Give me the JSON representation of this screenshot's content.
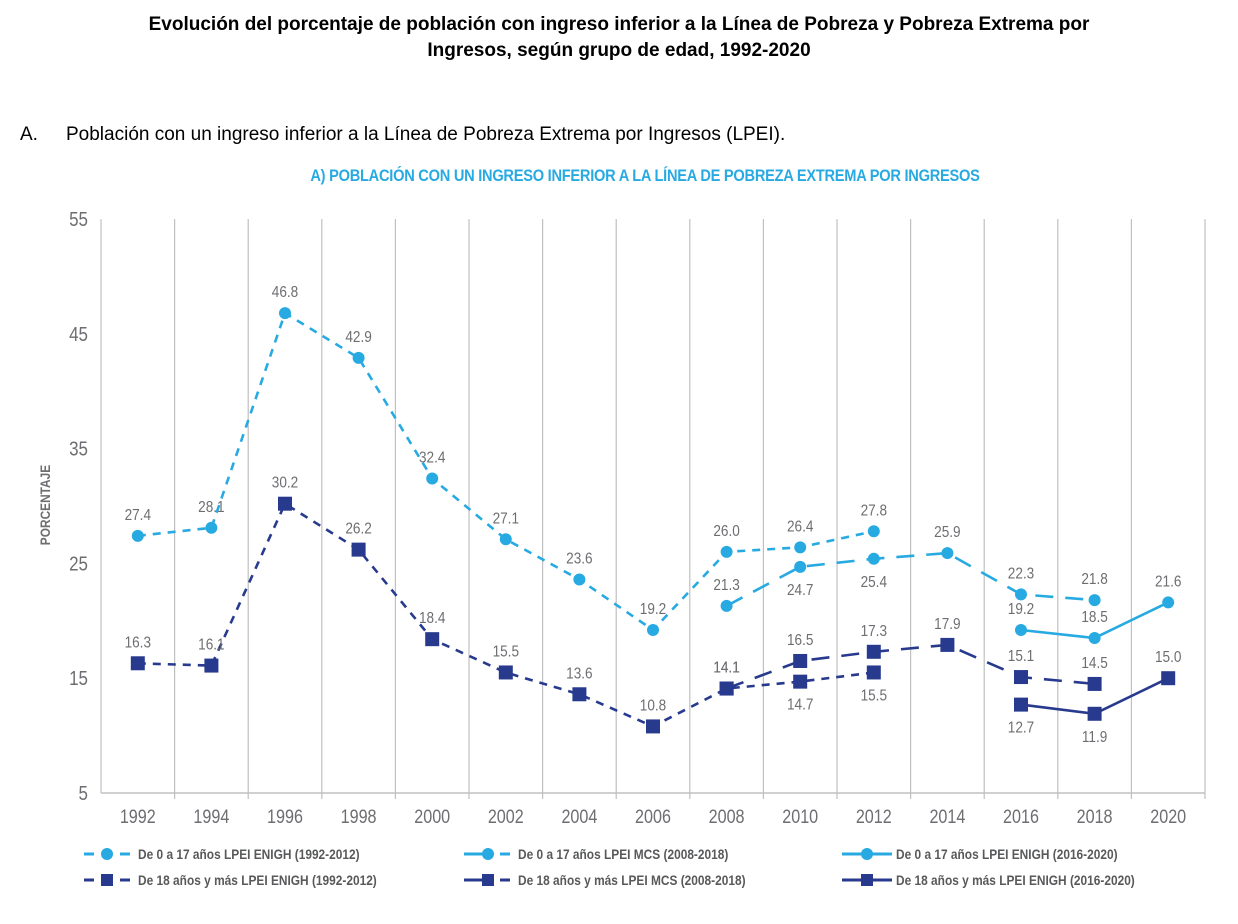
{
  "page": {
    "title": "Evolución del porcentaje de población con ingreso inferior a la Línea de Pobreza y Pobreza Extrema por Ingresos, según grupo de edad, 1992-2020",
    "title_line1": "Evolución del porcentaje de población con ingreso inferior a la Línea de Pobreza y Pobreza Extrema por",
    "title_line2": "Ingresos, según grupo de edad, 1992-2020",
    "section_letter": "A.",
    "section_text": "Población con un ingreso inferior a la Línea de Pobreza Extrema por Ingresos (LPEI)."
  },
  "colors": {
    "light_blue": "#27aae1",
    "navy": "#283a8e",
    "grid": "#c0c0c0",
    "tick_text": "#6d6e71"
  },
  "chart_data": {
    "type": "line",
    "title": "A) POBLACIÓN CON UN INGRESO INFERIOR A LA LÍNEA DE POBREZA EXTREMA POR INGRESOS",
    "xlabel": "",
    "ylabel": "PORCENTAJE",
    "ylim": [
      5,
      55
    ],
    "yticks": [
      5,
      15,
      25,
      35,
      45,
      55
    ],
    "grid": "vertical",
    "legend_position": "bottom",
    "categories": [
      "1992",
      "1994",
      "1996",
      "1998",
      "2000",
      "2002",
      "2004",
      "2006",
      "2008",
      "2010",
      "2012",
      "2014",
      "2016",
      "2018",
      "2020"
    ],
    "series": [
      {
        "name": "De 0 a 17 años LPEI ENIGH (1992-2012)",
        "color": "#27aae1",
        "marker": "circle",
        "line": "short-dash",
        "values": [
          27.4,
          28.1,
          46.8,
          42.9,
          32.4,
          27.1,
          23.6,
          19.2,
          26.0,
          26.4,
          27.8,
          null,
          null,
          null,
          null
        ],
        "label_pos": [
          "above",
          "above",
          "above",
          "above",
          "above",
          "above",
          "above",
          "above",
          "above",
          "above",
          "above",
          null,
          null,
          null,
          null
        ]
      },
      {
        "name": "De 0 a 17 años LPEI MCS (2008-2018)",
        "color": "#27aae1",
        "marker": "circle",
        "line": "long-dash",
        "values": [
          null,
          null,
          null,
          null,
          null,
          null,
          null,
          null,
          21.3,
          24.7,
          25.4,
          25.9,
          22.3,
          21.8,
          null
        ],
        "label_pos": [
          null,
          null,
          null,
          null,
          null,
          null,
          null,
          null,
          "above",
          "below",
          "below",
          "above",
          "above",
          "above",
          null
        ]
      },
      {
        "name": "De 0 a 17 años LPEI ENIGH (2016-2020)",
        "color": "#27aae1",
        "marker": "circle",
        "line": "solid",
        "values": [
          null,
          null,
          null,
          null,
          null,
          null,
          null,
          null,
          null,
          null,
          null,
          null,
          19.2,
          18.5,
          21.6
        ],
        "label_pos": [
          null,
          null,
          null,
          null,
          null,
          null,
          null,
          null,
          null,
          null,
          null,
          null,
          "above",
          "above",
          "above"
        ]
      },
      {
        "name": "De 18 años y más LPEI ENIGH (1992-2012)",
        "color": "#283a8e",
        "marker": "square",
        "line": "short-dash",
        "values": [
          16.3,
          16.1,
          30.2,
          26.2,
          18.4,
          15.5,
          13.6,
          10.8,
          14.1,
          14.7,
          15.5,
          null,
          null,
          null,
          null
        ],
        "label_pos": [
          "above",
          "above",
          "above",
          "above",
          "above",
          "above",
          "above",
          "above",
          "above",
          "below",
          "below",
          null,
          null,
          null,
          null
        ]
      },
      {
        "name": "De 18 años y más LPEI MCS (2008-2018)",
        "color": "#283a8e",
        "marker": "square",
        "line": "long-dash",
        "values": [
          null,
          null,
          null,
          null,
          null,
          null,
          null,
          null,
          14.1,
          16.5,
          17.3,
          17.9,
          15.1,
          14.5,
          null
        ],
        "label_pos": [
          null,
          null,
          null,
          null,
          null,
          null,
          null,
          null,
          null,
          "above",
          "above",
          "above",
          "above",
          "above",
          null
        ]
      },
      {
        "name": "De 18 años y más LPEI ENIGH (2016-2020)",
        "color": "#283a8e",
        "marker": "square",
        "line": "solid",
        "values": [
          null,
          null,
          null,
          null,
          null,
          null,
          null,
          null,
          null,
          null,
          null,
          null,
          12.7,
          11.9,
          15.0
        ],
        "label_pos": [
          null,
          null,
          null,
          null,
          null,
          null,
          null,
          null,
          null,
          null,
          null,
          null,
          "below",
          "below",
          "above"
        ]
      }
    ]
  }
}
